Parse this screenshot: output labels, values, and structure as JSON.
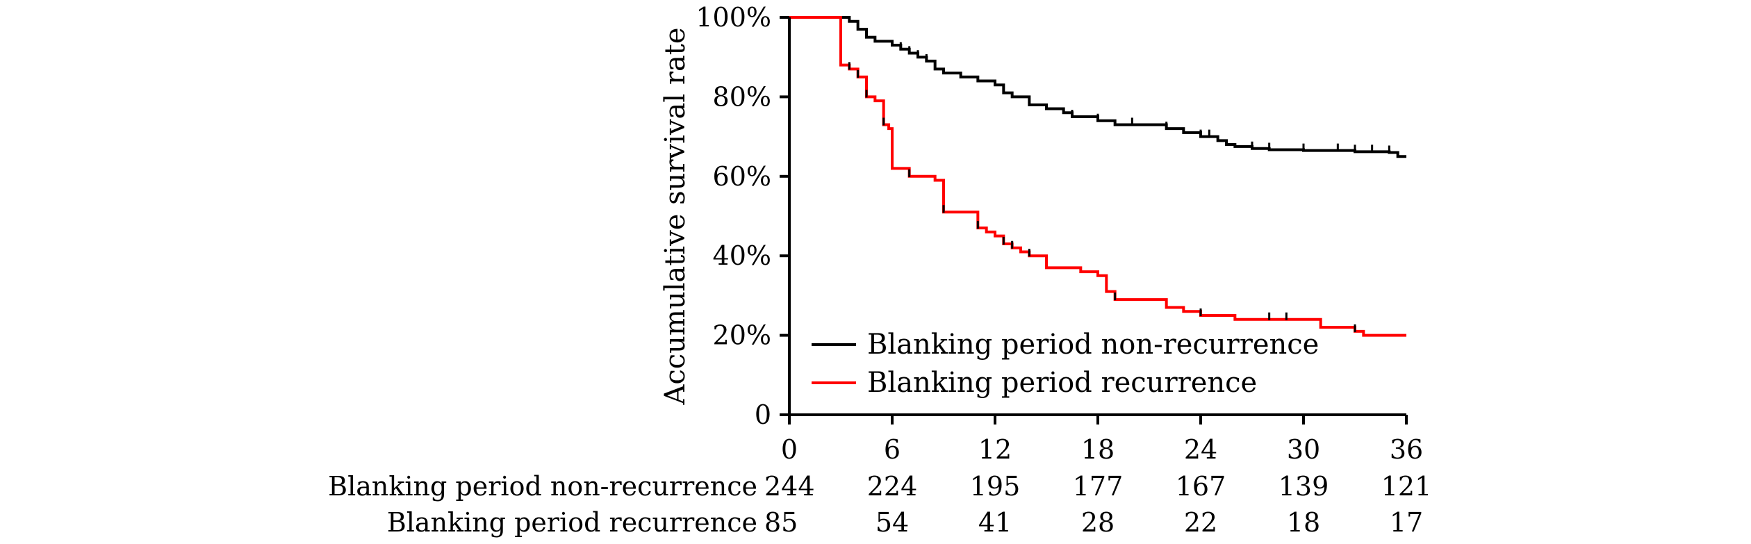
{
  "chart_data": {
    "type": "line",
    "step": true,
    "ylabel": "Accumulative survival rate",
    "xlabel": "",
    "xlim": [
      0,
      36
    ],
    "ylim": [
      0,
      100
    ],
    "x_ticks": [
      0,
      6,
      12,
      18,
      24,
      30,
      36
    ],
    "y_ticks": [
      {
        "value": 0,
        "label": "0"
      },
      {
        "value": 20,
        "label": "20%"
      },
      {
        "value": 40,
        "label": "40%"
      },
      {
        "value": 60,
        "label": "60%"
      },
      {
        "value": 80,
        "label": "80%"
      },
      {
        "value": 100,
        "label": "100%"
      }
    ],
    "grid": false,
    "legend_position": "bottom-left",
    "series": [
      {
        "name": "Blanking period non-recurrence",
        "color": "#000000",
        "points": [
          [
            0,
            100
          ],
          [
            3,
            100
          ],
          [
            3.5,
            99
          ],
          [
            4,
            97
          ],
          [
            4.5,
            95
          ],
          [
            5,
            94
          ],
          [
            6,
            93
          ],
          [
            6.5,
            92
          ],
          [
            7,
            91
          ],
          [
            7.5,
            90
          ],
          [
            8,
            89
          ],
          [
            8.5,
            87
          ],
          [
            9,
            86
          ],
          [
            10,
            85
          ],
          [
            11,
            84
          ],
          [
            12,
            83
          ],
          [
            12.5,
            81
          ],
          [
            13,
            80
          ],
          [
            14,
            78
          ],
          [
            15,
            77
          ],
          [
            16,
            76
          ],
          [
            16.5,
            75
          ],
          [
            18,
            74
          ],
          [
            19,
            73
          ],
          [
            20,
            73
          ],
          [
            22,
            72
          ],
          [
            23,
            71
          ],
          [
            24,
            70
          ],
          [
            25,
            69
          ],
          [
            25.5,
            68
          ],
          [
            26,
            67.5
          ],
          [
            27,
            67
          ],
          [
            28,
            66.7
          ],
          [
            30,
            66.5
          ],
          [
            33,
            66.2
          ],
          [
            35,
            66
          ],
          [
            35.5,
            65
          ],
          [
            36,
            65
          ]
        ],
        "censor_marks": [
          6.5,
          7,
          7.5,
          8,
          16.5,
          18,
          20,
          22,
          24,
          24.5,
          27,
          28,
          30,
          32,
          33,
          34,
          35
        ]
      },
      {
        "name": "Blanking period recurrence",
        "color": "#ff0000",
        "points": [
          [
            0,
            100
          ],
          [
            3,
            100
          ],
          [
            3,
            88
          ],
          [
            3.5,
            87
          ],
          [
            4,
            85
          ],
          [
            4.5,
            80
          ],
          [
            5,
            79
          ],
          [
            5.5,
            73
          ],
          [
            5.8,
            72
          ],
          [
            6,
            62
          ],
          [
            7,
            60
          ],
          [
            8.5,
            59
          ],
          [
            9,
            51
          ],
          [
            11,
            47
          ],
          [
            11.5,
            46
          ],
          [
            12,
            45
          ],
          [
            12.5,
            43
          ],
          [
            13,
            42
          ],
          [
            13.5,
            41
          ],
          [
            14,
            40
          ],
          [
            15,
            37
          ],
          [
            16,
            37
          ],
          [
            17,
            36
          ],
          [
            18,
            35
          ],
          [
            18.5,
            31
          ],
          [
            19,
            29
          ],
          [
            21,
            29
          ],
          [
            22,
            27
          ],
          [
            23,
            26
          ],
          [
            24,
            25
          ],
          [
            26,
            24
          ],
          [
            30,
            24
          ],
          [
            31,
            22
          ],
          [
            33,
            21
          ],
          [
            33.5,
            20
          ],
          [
            36,
            20
          ]
        ],
        "censor_marks": [
          3.5,
          4,
          4.5,
          5.5,
          7,
          9,
          11,
          12.5,
          13,
          14,
          19,
          24,
          28,
          29,
          33
        ]
      }
    ],
    "risk_table": {
      "times": [
        "0",
        "6",
        "12",
        "18",
        "24",
        "30",
        "36"
      ],
      "rows": [
        {
          "label": "Blanking period non-recurrence",
          "values": [
            "244",
            "224",
            "195",
            "177",
            "167",
            "139",
            "121"
          ]
        },
        {
          "label": "Blanking period recurrence",
          "values": [
            "85",
            "54",
            "41",
            "28",
            "22",
            "18",
            "17"
          ]
        }
      ]
    }
  }
}
